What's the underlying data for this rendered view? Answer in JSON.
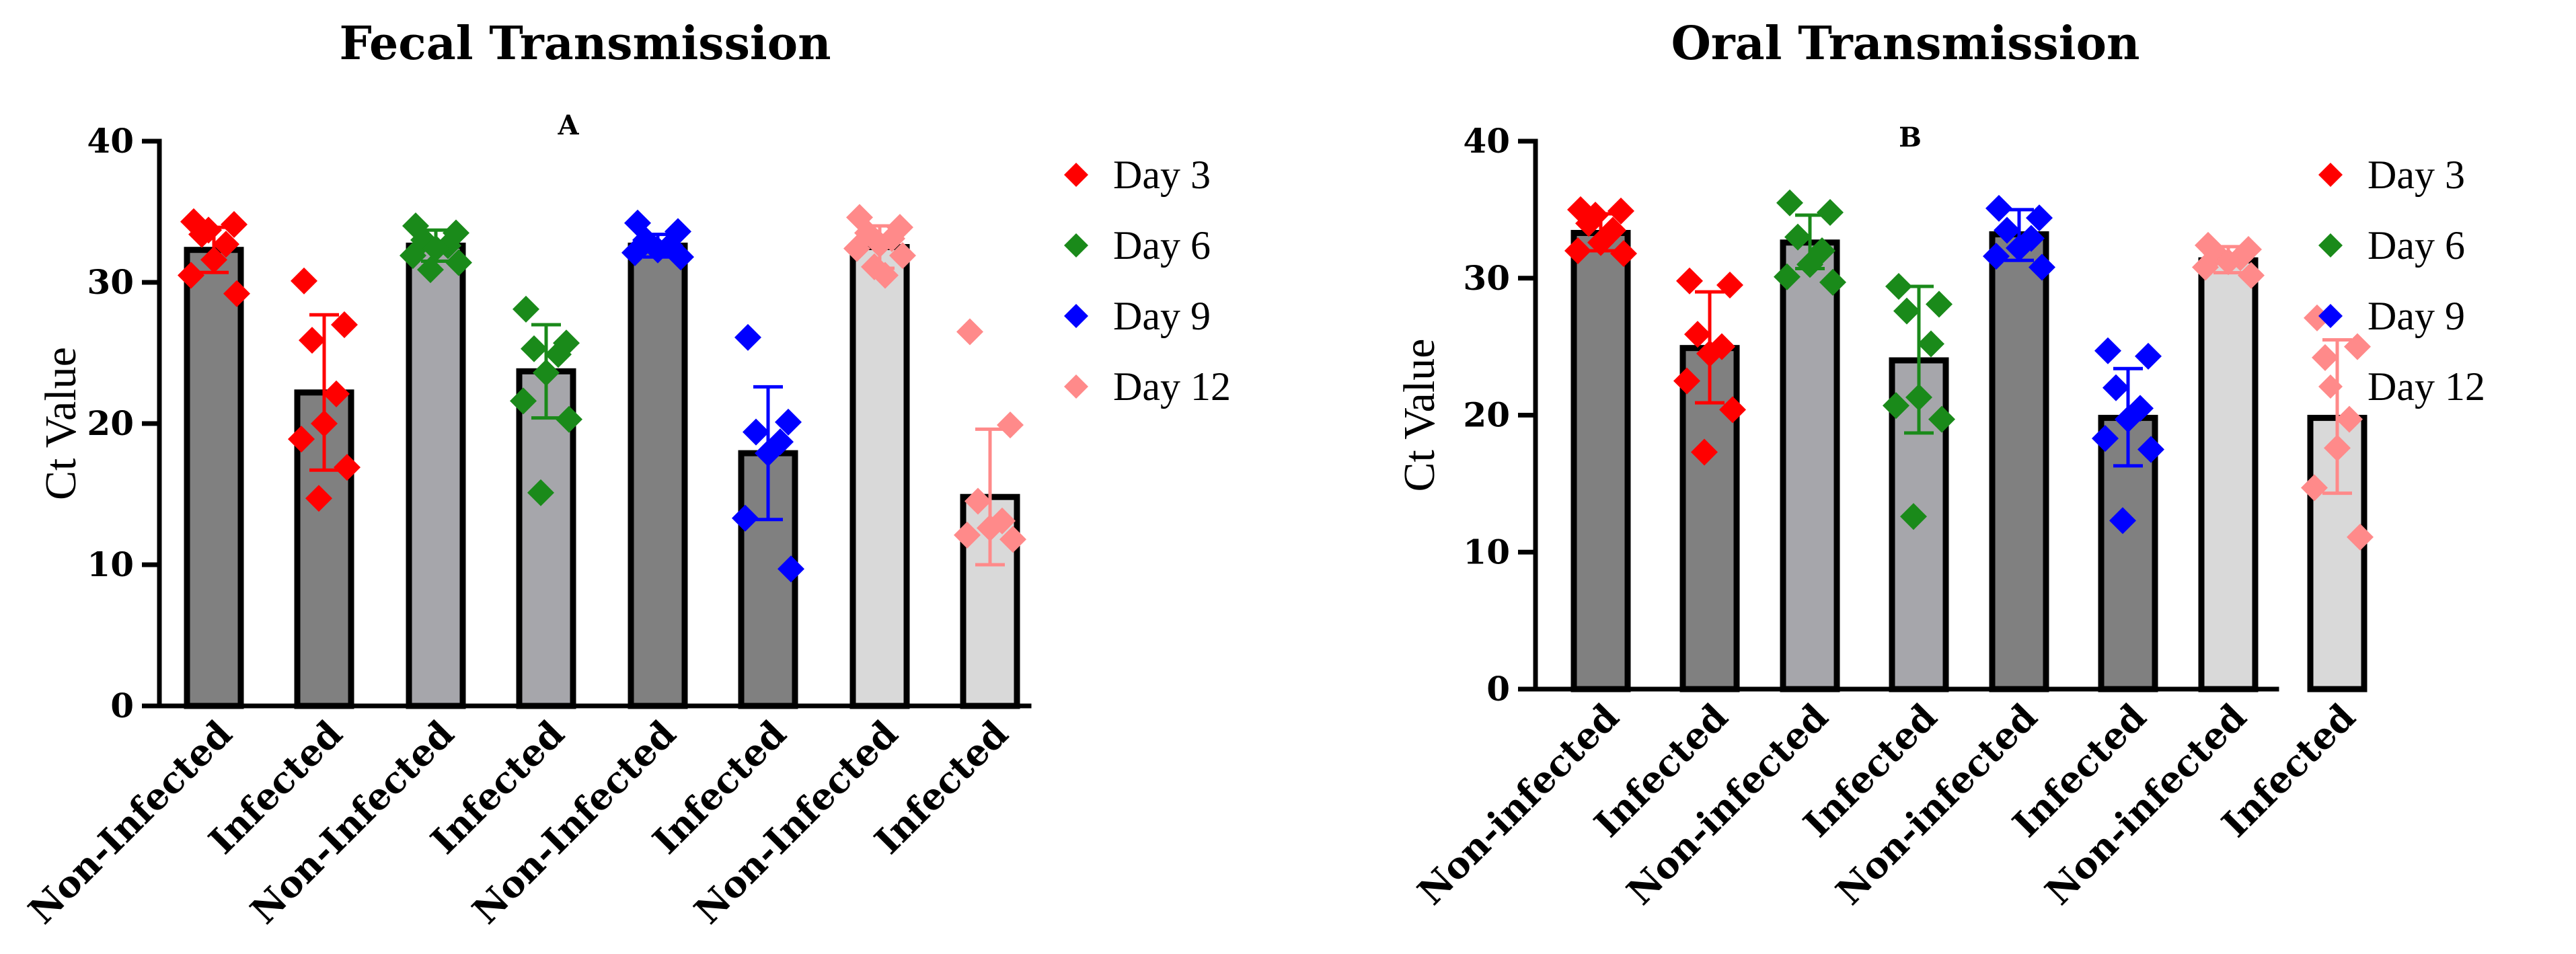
{
  "chart_data": [
    {
      "type": "bar",
      "title": "Fecal Transmission",
      "panel_label": "A",
      "ylabel": "Ct Value",
      "ylim": [
        0,
        40
      ],
      "yticks": [
        "0",
        "10",
        "20",
        "30",
        "40"
      ],
      "categories": [
        "Non-Infected",
        "Infected",
        "Non-Infected",
        "Infected",
        "Non-Infected",
        "Infected",
        "Non-Infected",
        "Infected"
      ],
      "bar_groups": [
        "Day 3",
        "Day 3",
        "Day 6",
        "Day 6",
        "Day 9",
        "Day 9",
        "Day 12",
        "Day 12"
      ],
      "values": [
        32.3,
        22.2,
        32.6,
        23.7,
        32.6,
        17.9,
        32.5,
        14.8
      ],
      "error": [
        [
          30.7,
          33.9
        ],
        [
          16.7,
          27.7
        ],
        [
          31.5,
          33.7
        ],
        [
          20.4,
          27.0
        ],
        [
          31.8,
          33.4
        ],
        [
          13.2,
          22.6
        ],
        [
          31.0,
          34.0
        ],
        [
          10.0,
          19.6
        ]
      ],
      "bar_colors": [
        "#808080",
        "#808080",
        "#a6a6ab",
        "#a6a6ab",
        "#808080",
        "#808080",
        "#d9d9d9",
        "#d9d9d9"
      ],
      "points": [
        [
          34.3,
          34.1,
          33.4,
          32.7,
          31.6,
          30.5,
          29.2,
          33.7
        ],
        [
          30.1,
          27.0,
          25.9,
          22.1,
          20.0,
          18.9,
          16.9,
          14.7
        ],
        [
          34.0,
          33.5,
          33.0,
          32.6,
          32.4,
          31.9,
          31.4,
          30.9
        ],
        [
          28.1,
          25.7,
          25.3,
          24.9,
          23.6,
          21.6,
          20.3,
          15.1
        ],
        [
          34.2,
          33.6,
          33.0,
          32.6,
          32.3,
          32.1,
          31.8
        ],
        [
          26.1,
          20.1,
          19.4,
          18.7,
          17.9,
          13.3,
          9.7
        ],
        [
          34.6,
          33.9,
          33.5,
          33.1,
          32.7,
          32.4,
          31.9,
          31.1,
          30.5
        ],
        [
          26.5,
          19.9,
          14.5,
          13.1,
          12.6,
          12.1,
          11.8
        ]
      ],
      "legend": [
        {
          "label": "Day 3",
          "color": "#ff0000"
        },
        {
          "label": "Day 6",
          "color": "#1a8a1a"
        },
        {
          "label": "Day 9",
          "color": "#0000ff"
        },
        {
          "label": "Day 12",
          "color": "#ff8a8a"
        }
      ],
      "legend_position": "right",
      "grid": false
    },
    {
      "type": "bar",
      "title": "Oral Transmission",
      "panel_label": "B",
      "ylabel": "Ct Value",
      "ylim": [
        0,
        40
      ],
      "yticks": [
        "0",
        "10",
        "20",
        "30",
        "40"
      ],
      "categories": [
        "Non-infected",
        "Infected",
        "Non-infected",
        "Infected",
        "Non-infected",
        "Infected",
        "Non-infected",
        "Infected"
      ],
      "bar_groups": [
        "Day 3",
        "Day 3",
        "Day 6",
        "Day 6",
        "Day 9",
        "Day 9",
        "Day 12",
        "Day 12"
      ],
      "values": [
        33.3,
        24.9,
        32.6,
        24.0,
        33.2,
        19.8,
        31.3,
        19.8
      ],
      "error": [
        [
          32.0,
          34.7
        ],
        [
          20.9,
          29.0
        ],
        [
          30.7,
          34.6
        ],
        [
          18.7,
          29.4
        ],
        [
          31.3,
          35.0
        ],
        [
          16.3,
          23.4
        ],
        [
          30.4,
          32.3
        ],
        [
          14.3,
          25.5
        ]
      ],
      "bar_colors": [
        "#808080",
        "#808080",
        "#a6a6ab",
        "#a6a6ab",
        "#808080",
        "#808080",
        "#d9d9d9",
        "#d9d9d9"
      ],
      "points": [
        [
          35.0,
          34.9,
          34.0,
          33.5,
          32.6,
          32.0,
          31.8,
          34.6
        ],
        [
          29.8,
          29.5,
          25.9,
          25.0,
          24.5,
          22.5,
          20.4,
          17.3
        ],
        [
          35.5,
          34.8,
          33.0,
          32.0,
          31.0,
          30.1,
          29.7
        ],
        [
          29.4,
          28.1,
          27.6,
          25.2,
          21.3,
          20.7,
          19.7,
          12.6
        ],
        [
          35.1,
          34.4,
          33.5,
          32.9,
          32.2,
          31.6,
          30.8
        ],
        [
          24.7,
          24.3,
          22.0,
          20.5,
          19.7,
          18.3,
          17.5,
          12.3
        ],
        [
          32.4,
          32.1,
          31.8,
          31.5,
          31.2,
          30.8,
          30.2
        ],
        [
          27.1,
          25.0,
          24.2,
          19.7,
          17.6,
          14.7,
          11.1
        ]
      ],
      "legend": [
        {
          "label": "Day 3",
          "color": "#ff0000"
        },
        {
          "label": "Day 6",
          "color": "#1a8a1a"
        },
        {
          "label": "Day 9",
          "color": "#0000ff"
        },
        {
          "label": "Day 12",
          "color": "#ff8a8a"
        }
      ],
      "legend_position": "right",
      "grid": false
    }
  ]
}
